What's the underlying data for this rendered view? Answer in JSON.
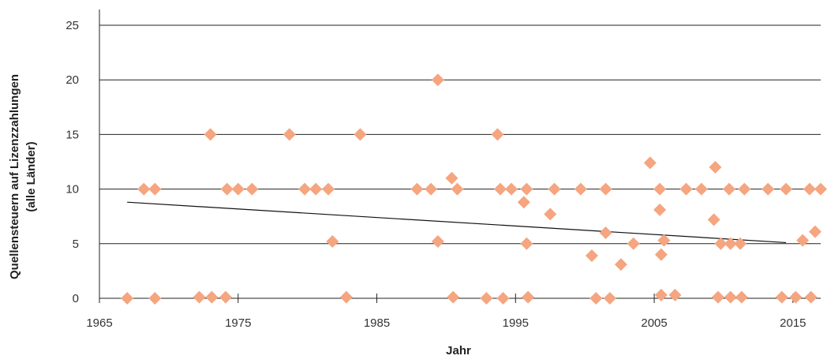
{
  "chart_data": {
    "type": "scatter",
    "title": "",
    "xlabel": "Jahr",
    "ylabel_lines": [
      "Quellensteuern auf Lizenzzahlungen",
      "(alle Länder)"
    ],
    "xlim": [
      1965,
      2017
    ],
    "ylim": [
      0,
      25
    ],
    "xticks": [
      1965,
      1975,
      1985,
      1995,
      2005,
      2015
    ],
    "yticks": [
      0,
      5,
      10,
      15,
      20,
      25
    ],
    "grid": "horizontal",
    "marker": "diamond",
    "marker_color": "#F5A57F",
    "trendline": {
      "x": [
        1967,
        2014.5
      ],
      "y": [
        8.8,
        5.1
      ]
    },
    "points": [
      [
        1967,
        0
      ],
      [
        1968.2,
        10
      ],
      [
        1969,
        10
      ],
      [
        1969,
        0
      ],
      [
        1972.2,
        0.1
      ],
      [
        1973,
        15
      ],
      [
        1973.1,
        0.1
      ],
      [
        1974.1,
        0.1
      ],
      [
        1974.2,
        10
      ],
      [
        1975,
        10
      ],
      [
        1976,
        10
      ],
      [
        1978.7,
        15
      ],
      [
        1979.8,
        10
      ],
      [
        1980.6,
        10
      ],
      [
        1981.5,
        10
      ],
      [
        1981.8,
        5.2
      ],
      [
        1982.8,
        0.1
      ],
      [
        1983.8,
        15
      ],
      [
        1987.9,
        10
      ],
      [
        1988.9,
        10
      ],
      [
        1989.4,
        20
      ],
      [
        1989.4,
        5.2
      ],
      [
        1990.4,
        11
      ],
      [
        1990.5,
        0.1
      ],
      [
        1990.8,
        10
      ],
      [
        1992.9,
        0
      ],
      [
        1993.7,
        15
      ],
      [
        1993.9,
        10
      ],
      [
        1994.1,
        0
      ],
      [
        1994.7,
        10
      ],
      [
        1995.6,
        8.8
      ],
      [
        1995.8,
        10
      ],
      [
        1995.8,
        5
      ],
      [
        1995.9,
        0.1
      ],
      [
        1997.5,
        7.7
      ],
      [
        1997.8,
        10
      ],
      [
        1999.7,
        10
      ],
      [
        2000.5,
        3.9
      ],
      [
        2000.8,
        0
      ],
      [
        2001.5,
        10
      ],
      [
        2001.5,
        6
      ],
      [
        2001.8,
        0
      ],
      [
        2002.6,
        3.1
      ],
      [
        2003.5,
        5
      ],
      [
        2004.7,
        12.4
      ],
      [
        2005.4,
        10
      ],
      [
        2005.4,
        8.1
      ],
      [
        2005.5,
        0.3
      ],
      [
        2005.5,
        4
      ],
      [
        2005.7,
        5.3
      ],
      [
        2006.5,
        0.3
      ],
      [
        2007.3,
        10
      ],
      [
        2008.4,
        10
      ],
      [
        2009.3,
        7.2
      ],
      [
        2009.4,
        12
      ],
      [
        2009.6,
        0.1
      ],
      [
        2009.8,
        5
      ],
      [
        2010.4,
        10
      ],
      [
        2010.5,
        0.1
      ],
      [
        2010.5,
        5
      ],
      [
        2011.2,
        5
      ],
      [
        2011.3,
        0.1
      ],
      [
        2011.5,
        10
      ],
      [
        2013.2,
        10
      ],
      [
        2014.2,
        0.1
      ],
      [
        2014.5,
        10
      ],
      [
        2015.2,
        0.1
      ],
      [
        2015.7,
        5.3
      ],
      [
        2016.2,
        10
      ],
      [
        2016.3,
        0.1
      ],
      [
        2016.6,
        6.1
      ],
      [
        2017,
        10
      ]
    ]
  }
}
